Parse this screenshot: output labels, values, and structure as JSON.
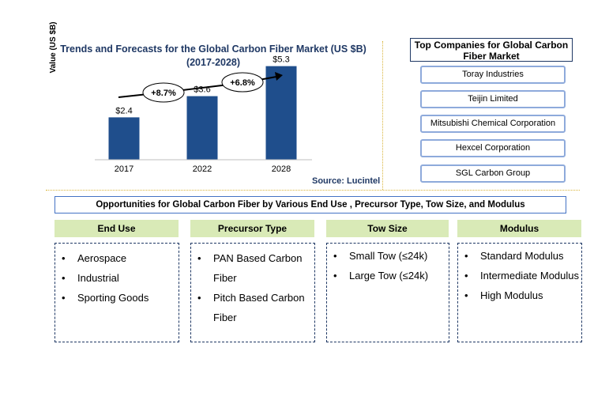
{
  "chart_data": {
    "type": "bar",
    "title": "Trends and Forecasts for the Global Carbon Fiber Market (US $B)",
    "subtitle": "(2017-2028)",
    "categories": [
      "2017",
      "2022",
      "2028"
    ],
    "values": [
      2.4,
      3.6,
      5.3
    ],
    "value_labels": [
      "$2.4",
      "$3.6",
      "$5.3"
    ],
    "ylabel": "Value (US $B)",
    "xlabel": "",
    "ylim": [
      0,
      6
    ],
    "grid": false,
    "bar_color": "#1f4e8c",
    "annotations": [
      "+8.7%",
      "+6.8%"
    ],
    "source": "Source: Lucintel"
  },
  "top_companies": {
    "title": "Top Companies for Global Carbon Fiber Market",
    "items": [
      "Toray Industries",
      "Teijin Limited",
      "Mitsubishi Chemical  Corporation",
      "Hexcel Corporation",
      "SGL Carbon Group"
    ]
  },
  "opportunities": {
    "title": "Opportunities for Global Carbon Fiber by Various End Use , Precursor Type, Tow Size, and Modulus",
    "bullet": "•",
    "categories": [
      {
        "heading": "End Use",
        "items": [
          "Aerospace",
          "Industrial",
          "Sporting Goods"
        ]
      },
      {
        "heading": "Precursor Type",
        "items": [
          "PAN Based Carbon Fiber",
          "Pitch Based Carbon Fiber"
        ]
      },
      {
        "heading": "Tow Size",
        "items": [
          "Small Tow (≤24k)",
          "Large Tow (≤24k)"
        ]
      },
      {
        "heading": "Modulus",
        "items": [
          "Standard Modulus",
          "Intermediate Modulus",
          "High Modulus"
        ]
      }
    ]
  }
}
